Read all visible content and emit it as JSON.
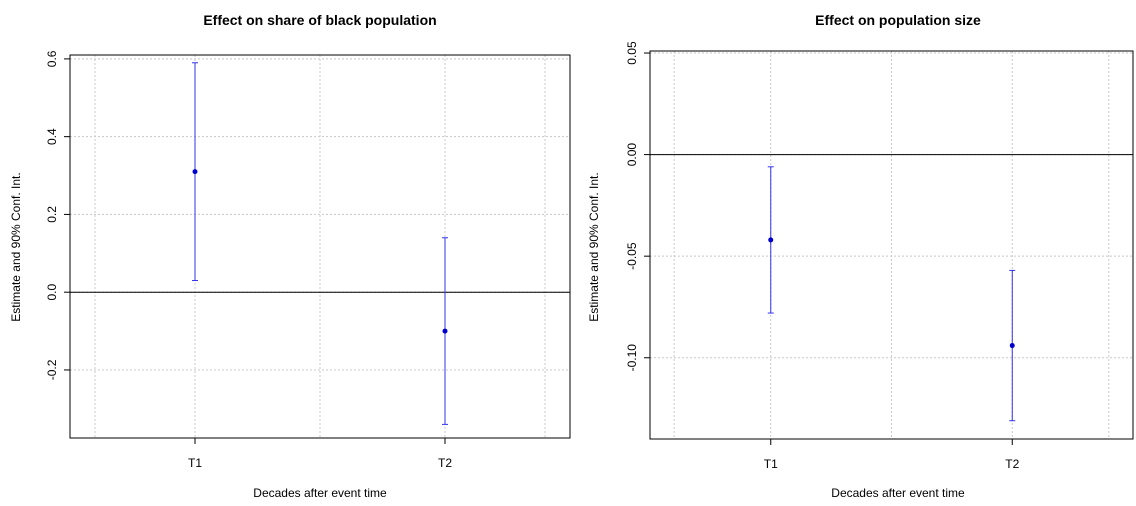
{
  "chart_data": [
    {
      "type": "scatter",
      "title": "Effect on share of black population",
      "xlabel": "Decades after event time",
      "ylabel": "Estimate and 90% Conf. Int.",
      "categories": [
        "T1",
        "T2"
      ],
      "yticks": [
        "0.6",
        "0.4",
        "0.2",
        "0.0",
        "-0.2"
      ],
      "ytick_values": [
        0.6,
        0.4,
        0.2,
        0.0,
        -0.2
      ],
      "ylim": [
        -0.375,
        0.61
      ],
      "xlim": [
        0.5,
        2.5
      ],
      "reference_line": 0,
      "grid": true,
      "series": [
        {
          "estimates": [
            0.31,
            -0.1
          ],
          "lower": [
            0.03,
            -0.34
          ],
          "upper": [
            0.59,
            0.14
          ]
        }
      ],
      "colors": {
        "points": "#0000cc",
        "errorbars": "#3333ee",
        "grid": "#c8c8c8",
        "axes": "#000000"
      }
    },
    {
      "type": "scatter",
      "title": "Effect on population size",
      "xlabel": "Decades after event time",
      "ylabel": "Estimate and 90% Conf. Int.",
      "categories": [
        "T1",
        "T2"
      ],
      "yticks": [
        "0.05",
        "0.00",
        "-0.05",
        "-0.10"
      ],
      "ytick_values": [
        0.05,
        0.0,
        -0.05,
        -0.1
      ],
      "ylim": [
        -0.14,
        0.051
      ],
      "xlim": [
        0.5,
        2.5
      ],
      "reference_line": 0,
      "grid": true,
      "series": [
        {
          "estimates": [
            -0.042,
            -0.094
          ],
          "lower": [
            -0.078,
            -0.131
          ],
          "upper": [
            -0.006,
            -0.057
          ]
        }
      ],
      "colors": {
        "points": "#0000cc",
        "errorbars": "#3333ee",
        "grid": "#c8c8c8",
        "axes": "#000000"
      }
    }
  ]
}
